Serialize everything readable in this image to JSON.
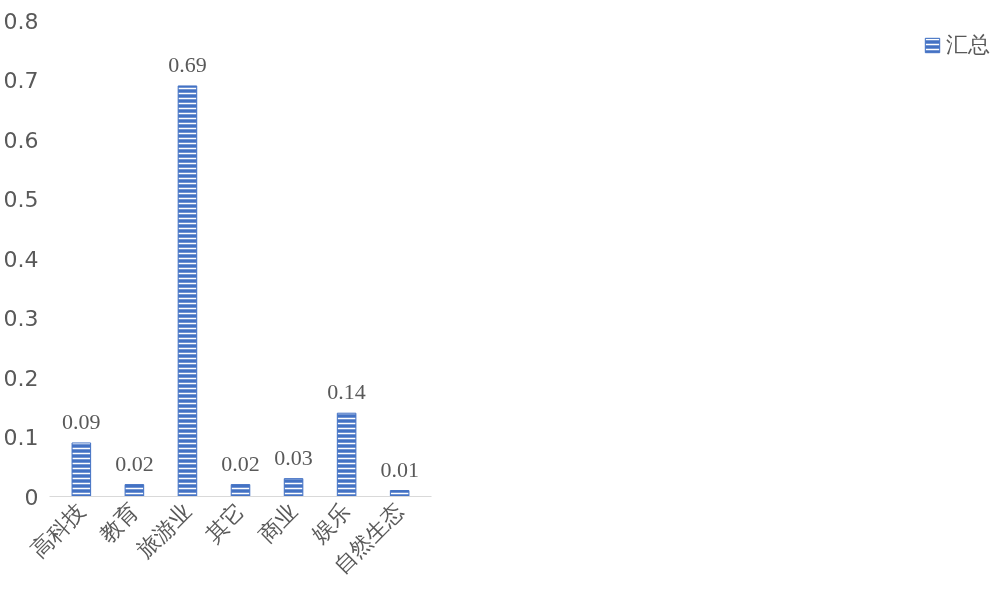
{
  "chart_data": {
    "type": "bar",
    "categories": [
      "高科技",
      "教育",
      "旅游业",
      "其它",
      "商业",
      "娱乐",
      "自然生态"
    ],
    "series": [
      {
        "name": "汇总",
        "color": "#4472c4",
        "values": [
          0.09,
          0.02,
          0.69,
          0.02,
          0.03,
          0.14,
          0.01
        ]
      }
    ],
    "ylim": [
      0,
      0.8
    ],
    "yticks": [
      0,
      0.1,
      0.2,
      0.3,
      0.4,
      0.5,
      0.6,
      0.7,
      0.8
    ],
    "data_labels": true,
    "grid": false,
    "legend": "right"
  }
}
